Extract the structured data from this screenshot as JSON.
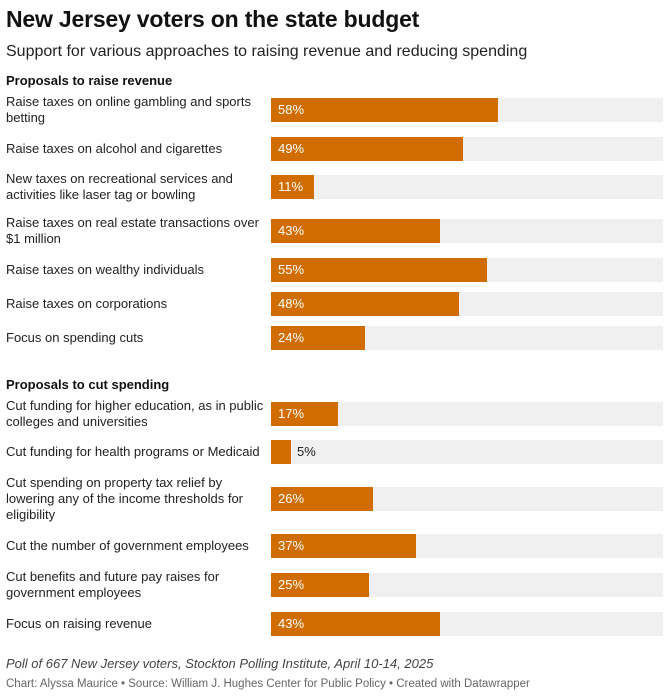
{
  "chart_data": {
    "type": "bar",
    "title": "New Jersey voters on the state budget",
    "subtitle": "Support for various approaches to raising revenue and reducing spending",
    "xlim": [
      0,
      100
    ],
    "value_suffix": "%",
    "groups": [
      {
        "name": "Proposals to raise revenue",
        "categories": [
          "Raise taxes on online gambling and sports betting",
          "Raise taxes on alcohol and cigarettes",
          "New taxes on recreational services and activities like laser tag or bowling",
          "Raise taxes on real estate transactions over $1 million",
          "Raise taxes on wealthy individuals",
          "Raise taxes on corporations",
          "Focus on spending cuts"
        ],
        "values": [
          58,
          49,
          11,
          43,
          55,
          48,
          24
        ]
      },
      {
        "name": "Proposals to cut spending",
        "categories": [
          "Cut funding for higher education, as in public colleges and universities",
          "Cut funding for health programs or Medicaid",
          "Cut spending on property tax relief by lowering any of the income thresholds for eligibility",
          "Cut the number of government employees",
          "Cut benefits and future pay raises for government employees",
          "Focus on raising revenue"
        ],
        "values": [
          17,
          5,
          26,
          37,
          25,
          43
        ]
      }
    ],
    "bar_color": "#d16d00",
    "track_color": "#f0f0f0"
  },
  "notes": "Poll of 667 New Jersey voters, Stockton Polling Institute, April 10-14, 2025",
  "footer": "Chart: Alyssa Maurice • Source: William J. Hughes Center for Public Policy • Created with Datawrapper"
}
